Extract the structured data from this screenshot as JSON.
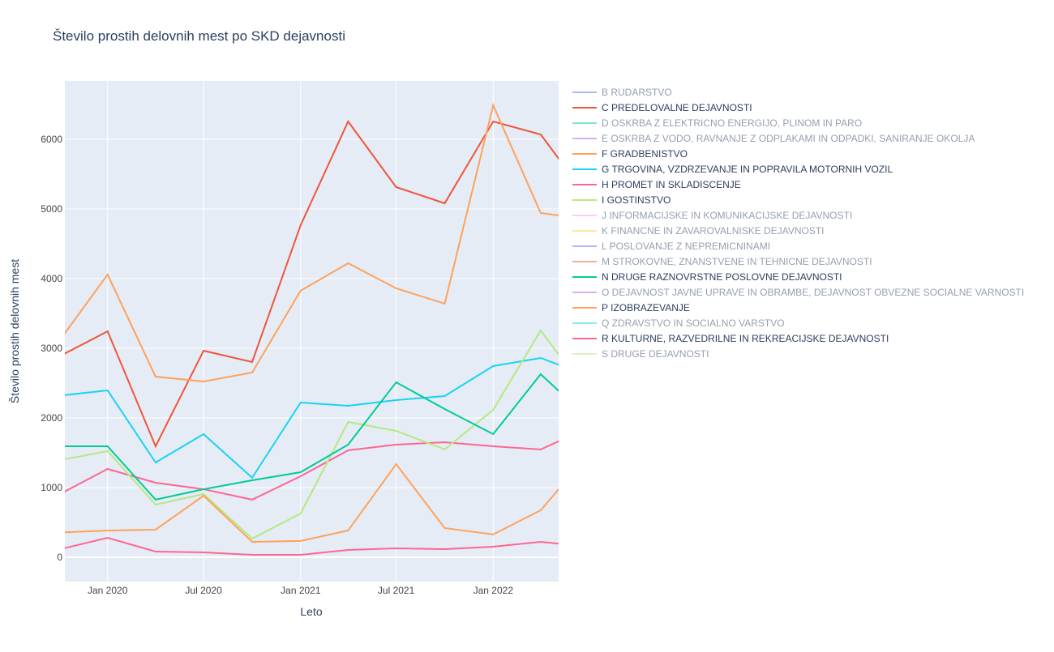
{
  "chart_data": {
    "type": "line",
    "title": "Število prostih delovnih mest po SKD dejavnosti",
    "x_label": "Leto",
    "y_label": "Število prostih delovnih mest",
    "x": [
      "2019-10-01",
      "2020-01-01",
      "2020-04-01",
      "2020-07-01",
      "2020-10-01",
      "2021-01-01",
      "2021-04-01",
      "2021-07-01",
      "2021-10-01",
      "2022-01-01",
      "2022-04-01",
      "2022-07-01"
    ],
    "xlim": [
      "2019-10-12",
      "2022-05-05"
    ],
    "xticks": [
      {
        "value": "2020-01-01",
        "label": "Jan 2020"
      },
      {
        "value": "2020-07-01",
        "label": "Jul 2020"
      },
      {
        "value": "2021-01-01",
        "label": "Jan 2021"
      },
      {
        "value": "2021-07-01",
        "label": "Jul 2021"
      },
      {
        "value": "2022-01-01",
        "label": "Jan 2022"
      }
    ],
    "ylim": [
      -349,
      6837
    ],
    "yticks": [
      0,
      1000,
      2000,
      3000,
      4000,
      5000,
      6000
    ],
    "grid": true,
    "legend": "right",
    "series": [
      {
        "name": "B RUDARSTVO",
        "color": "#636efa",
        "visible": "legendonly"
      },
      {
        "name": "C PREDELOVALNE DEJAVNOSTI",
        "color": "#EF553B",
        "values": [
          2880,
          3244,
          1593,
          2965,
          2802,
          4767,
          6256,
          5314,
          5081,
          6256,
          6070,
          5140
        ]
      },
      {
        "name": "D OSKRBA Z ELEKTRICNO ENERGIJO, PLINOM IN PARO",
        "color": "#00cc96",
        "visible": "legendonly"
      },
      {
        "name": "E OSKRBA Z VODO, RAVNANJE Z ODPLAKAMI IN ODPADKI, SANIRANJE OKOLJA",
        "color": "#ab63fa",
        "visible": "legendonly"
      },
      {
        "name": "F GRADBENISTVO",
        "color": "#FFA15A",
        "values": [
          3100,
          4058,
          2593,
          2523,
          2651,
          3826,
          4221,
          3860,
          3640,
          6488,
          4942,
          4850
        ]
      },
      {
        "name": "G TRGOVINA, VZDRZEVANJE IN POPRAVILA MOTORNIH VOZIL",
        "color": "#19d3f3",
        "values": [
          2318,
          2395,
          1360,
          1767,
          1140,
          2221,
          2174,
          2256,
          2314,
          2744,
          2860,
          2600
        ]
      },
      {
        "name": "H PROMET IN SKLADISCENJE",
        "color": "#FF6692",
        "values": [
          900,
          1267,
          1070,
          977,
          826,
          1163,
          1535,
          1616,
          1651,
          1593,
          1547,
          1860
        ]
      },
      {
        "name": "I GOSTINSTVO",
        "color": "#B6E880",
        "values": [
          1390,
          1523,
          756,
          907,
          267,
          628,
          1942,
          1814,
          1547,
          2116,
          3256,
          2330
        ]
      },
      {
        "name": "J INFORMACIJSKE IN KOMUNIKACIJSKE DEJAVNOSTI",
        "color": "#FF97FF",
        "visible": "legendonly"
      },
      {
        "name": "K FINANCNE IN ZAVAROVALNISKE DEJAVNOSTI",
        "color": "#FECB52",
        "visible": "legendonly"
      },
      {
        "name": "L POSLOVANJE Z NEPREMICNINAMI",
        "color": "#636efa",
        "visible": "legendonly"
      },
      {
        "name": "M STROKOVNE, ZNANSTVENE IN TEHNICNE DEJAVNOSTI",
        "color": "#EF553B",
        "visible": "legendonly"
      },
      {
        "name": "N DRUGE RAZNOVRSTNE POSLOVNE DEJAVNOSTI",
        "color": "#00cc96",
        "values": [
          1593,
          1593,
          826,
          977,
          1105,
          1221,
          1616,
          2512,
          2128,
          1767,
          2628,
          1990
        ]
      },
      {
        "name": "O DEJAVNOST JAVNE UPRAVE IN OBRAMBE, DEJAVNOST OBVEZNE SOCIALNE VARNOSTI",
        "color": "#ab63fa",
        "visible": "legendonly"
      },
      {
        "name": "P IZOBRAZEVANJE",
        "color": "#FFA15A",
        "values": [
          355,
          384,
          395,
          884,
          221,
          233,
          384,
          1337,
          419,
          326,
          674,
          1480
        ]
      },
      {
        "name": "Q ZDRAVSTVO IN SOCIALNO VARSTVO",
        "color": "#19d3f3",
        "visible": "legendonly"
      },
      {
        "name": "R KULTURNE, RAZVEDRILNE IN REKREACIJSKE DEJAVNOSTI",
        "color": "#FF6692",
        "values": [
          110,
          279,
          81,
          70,
          35,
          35,
          105,
          128,
          116,
          151,
          221,
          150
        ]
      },
      {
        "name": "S DRUGE DEJAVNOSTI",
        "color": "#B6E880",
        "visible": "legendonly"
      }
    ]
  }
}
